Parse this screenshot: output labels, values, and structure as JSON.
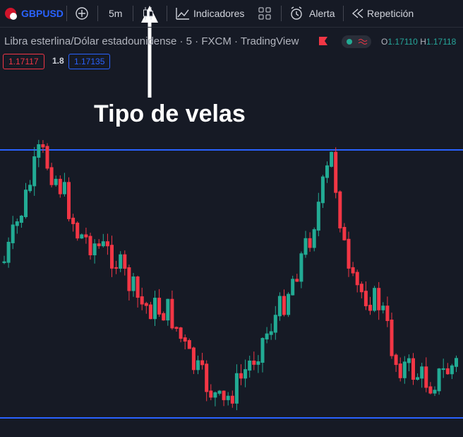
{
  "toolbar": {
    "symbol": "GBPUSD",
    "interval": "5m",
    "indicators": "Indicadores",
    "alert": "Alerta",
    "replay": "Repetición"
  },
  "legend": {
    "title": "Libra esterlina/Dólar estadounidense · 5 · FXCM · TradingView",
    "open_label": "O",
    "open": "1.17110",
    "high_label": "H",
    "high": "1.17118"
  },
  "prices": {
    "sell": "1.17117",
    "spread": "1.8",
    "buy": "1.17135"
  },
  "annotation": "Tipo de velas"
}
